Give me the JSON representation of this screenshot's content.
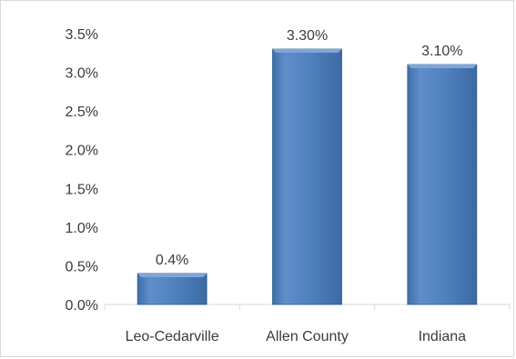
{
  "chart_data": {
    "type": "bar",
    "categories": [
      "Leo-Cedarville",
      "Allen County",
      "Indiana"
    ],
    "values": [
      0.4,
      3.3,
      3.1
    ],
    "data_labels": [
      "0.4%",
      "3.30%",
      "3.10%"
    ],
    "ylim": [
      0,
      3.5
    ],
    "y_ticks": [
      0,
      0.5,
      1.0,
      1.5,
      2.0,
      2.5,
      3.0,
      3.5
    ],
    "y_tick_labels": [
      "0.0%",
      "0.5%",
      "1.0%",
      "1.5%",
      "2.0%",
      "2.5%",
      "3.0%",
      "3.5%"
    ],
    "grid": false,
    "legend": "none",
    "colors": {
      "bar_fill": "#4f81bd",
      "bar_highlight": "#7ea6d8",
      "bar_shadow": "#2f5d8c",
      "axis": "#d9d9d9",
      "text": "#3b3b3b"
    }
  }
}
